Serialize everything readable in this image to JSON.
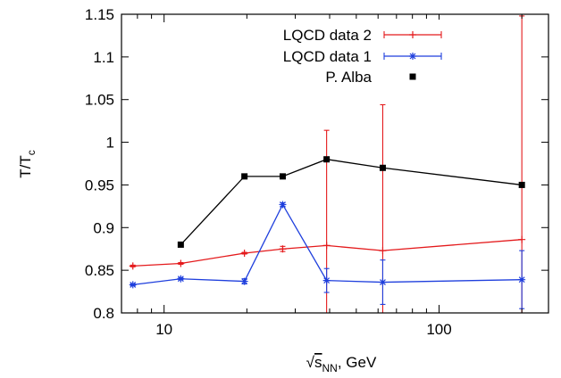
{
  "chart_data": {
    "type": "line",
    "title": "",
    "xlabel": {
      "root": "√",
      "s": "s",
      "sub": "NN",
      "rest": ", GeV"
    },
    "ylabel": {
      "main": "T/T",
      "sub": "c"
    },
    "xscale": "log",
    "xlim": [
      7,
      250
    ],
    "ylim": [
      0.8,
      1.15
    ],
    "xticks": [
      {
        "value": 10,
        "label": "10"
      },
      {
        "value": 100,
        "label": "100"
      }
    ],
    "yticks": [
      {
        "value": 0.8,
        "label": "0.8"
      },
      {
        "value": 0.85,
        "label": "0.85"
      },
      {
        "value": 0.9,
        "label": "0.9"
      },
      {
        "value": 0.95,
        "label": "0.95"
      },
      {
        "value": 1.0,
        "label": "1"
      },
      {
        "value": 1.05,
        "label": "1.05"
      },
      {
        "value": 1.1,
        "label": "1.1"
      },
      {
        "value": 1.15,
        "label": "1.15"
      }
    ],
    "grid": false,
    "legend_position": "top-center",
    "series": [
      {
        "name": "LQCD data 2",
        "color": "#e41a1c",
        "marker": "plus",
        "line": true,
        "points": [
          {
            "x": 7.7,
            "y": 0.855,
            "err": 0.001
          },
          {
            "x": 11.5,
            "y": 0.858,
            "err": 0.001
          },
          {
            "x": 19.6,
            "y": 0.87,
            "err": 0.001
          },
          {
            "x": 27,
            "y": 0.875,
            "err": 0.003
          },
          {
            "x": 39,
            "y": 0.879,
            "err": 0.135
          },
          {
            "x": 62.4,
            "y": 0.873,
            "err": 0.171
          },
          {
            "x": 200,
            "y": 0.886,
            "err": 0.262
          }
        ]
      },
      {
        "name": "LQCD data 1",
        "color": "#1f3fdd",
        "marker": "asterisk",
        "line": true,
        "points": [
          {
            "x": 7.7,
            "y": 0.833,
            "err": 0.001
          },
          {
            "x": 11.5,
            "y": 0.84,
            "err": 0.001
          },
          {
            "x": 19.6,
            "y": 0.837,
            "err": 0.003
          },
          {
            "x": 27,
            "y": 0.927,
            "err": 0.002
          },
          {
            "x": 39,
            "y": 0.838,
            "err": 0.014
          },
          {
            "x": 62.4,
            "y": 0.836,
            "err": 0.026
          },
          {
            "x": 200,
            "y": 0.839,
            "err": 0.034
          }
        ]
      },
      {
        "name": "P. Alba",
        "color": "#000000",
        "marker": "square",
        "line": true,
        "points": [
          {
            "x": 11.5,
            "y": 0.88
          },
          {
            "x": 19.6,
            "y": 0.96
          },
          {
            "x": 27,
            "y": 0.96
          },
          {
            "x": 39,
            "y": 0.98
          },
          {
            "x": 62.4,
            "y": 0.97
          },
          {
            "x": 200,
            "y": 0.95
          }
        ]
      }
    ]
  }
}
